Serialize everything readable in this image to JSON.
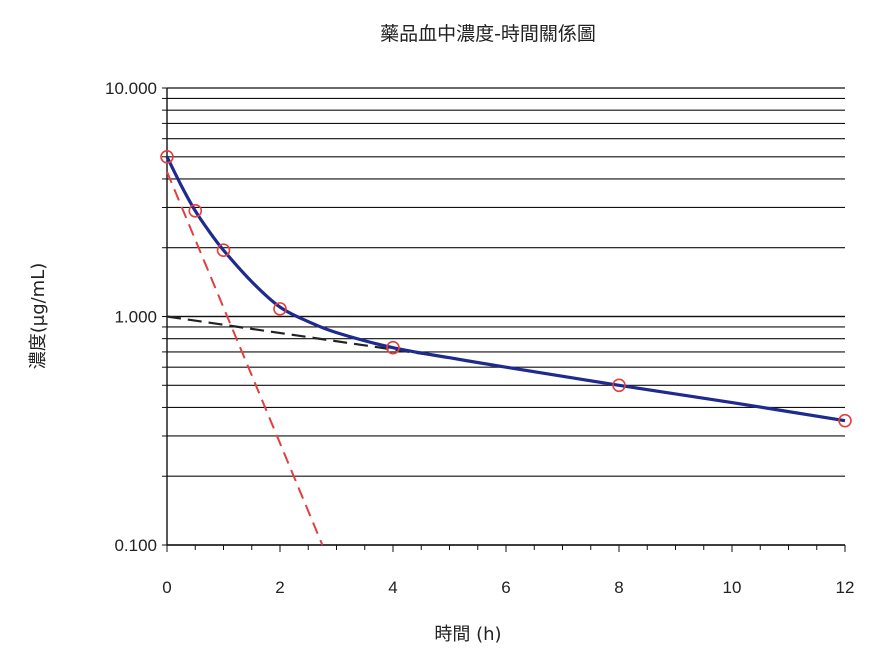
{
  "chart_data": {
    "type": "line",
    "title": "藥品血中濃度-時間關係圖",
    "xlabel": "時間 (h)",
    "ylabel": "濃度(μg/mL)",
    "y_scale": "log",
    "xlim": [
      0,
      12
    ],
    "ylim": [
      0.1,
      10
    ],
    "x_ticks": [
      0,
      2,
      4,
      6,
      8,
      10,
      12
    ],
    "x_tick_labels": [
      "0",
      "2",
      "4",
      "6",
      "8",
      "10",
      "12"
    ],
    "y_ticks": [
      0.1,
      1,
      10
    ],
    "y_tick_labels": [
      "0.100",
      "1.000",
      "10.000"
    ],
    "grid": "horizontal, at each log decade subdivision",
    "colors": {
      "fitted_curve": "#1f2a8f",
      "observed_markers": "#e0403f",
      "fast_phase_line": "#e0403f",
      "slow_phase_line": "#222222",
      "grid": "#111111"
    },
    "series": [
      {
        "style": "markers (red open circles)",
        "x": [
          0,
          0.5,
          1,
          2,
          4,
          8,
          12
        ],
        "y": [
          5.0,
          2.9,
          1.95,
          1.08,
          0.73,
          0.5,
          0.35
        ]
      },
      {
        "style": "solid dark blue smooth curve",
        "x": [
          0,
          0.25,
          0.5,
          0.75,
          1,
          1.5,
          2,
          2.5,
          3,
          4,
          5,
          6,
          8,
          10,
          12
        ],
        "y": [
          5.0,
          3.75,
          2.9,
          2.35,
          1.95,
          1.42,
          1.1,
          0.95,
          0.85,
          0.73,
          0.66,
          0.6,
          0.5,
          0.42,
          0.35
        ]
      },
      {
        "style": "dashed red straight line (fast phase)",
        "x": [
          0,
          2.75
        ],
        "y": [
          4.3,
          0.1
        ]
      },
      {
        "style": "dashed black straight line (slow phase)",
        "x": [
          0,
          5
        ],
        "y": [
          1.0,
          0.66
        ]
      }
    ]
  }
}
